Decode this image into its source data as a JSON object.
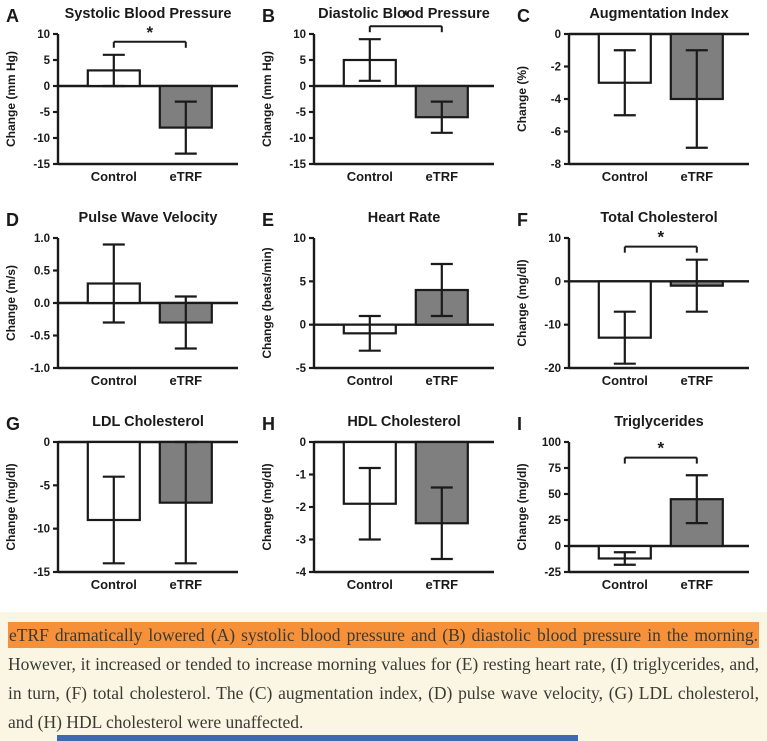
{
  "colors": {
    "control_fill": "#FFFFFF",
    "etrf_fill": "#7F7F7F",
    "axis": "#1A1A1A",
    "caption_bg": "#FBF6E3",
    "highlight": "#F6913A",
    "caption_text": "#3A3A32",
    "bottom_bar": "#3E68B0"
  },
  "caption": {
    "highlight": "eTRF dramatically lowered (A) systolic blood pressure and (B) diastolic blood pressure in the morning.",
    "rest": " However, it increased or tended to increase morning values for (E) resting heart rate, (I) triglycerides, and, in turn, (F) total cholesterol. The (C) augmentation index, (D) pulse wave velocity, (G) LDL cholesterol, and (H) HDL cholesterol were unaffected."
  },
  "chart_data": [
    {
      "type": "bar",
      "letter": "A",
      "title": "Systolic Blood Pressure",
      "ylabel": "Change (mm Hg)",
      "ylim": [
        -15,
        10
      ],
      "yticks": [
        "10",
        "5",
        "0",
        "-5",
        "-10",
        "-15"
      ],
      "categories": [
        "Control",
        "eTRF"
      ],
      "values": [
        3,
        -8
      ],
      "errors_low": [
        0,
        -13
      ],
      "errors_high": [
        6,
        -3
      ],
      "significant": true,
      "sig_y": 8.5,
      "sig_label": "*",
      "grid": false,
      "legend": false
    },
    {
      "type": "bar",
      "letter": "B",
      "title": "Diastolic Blood Pressure",
      "ylabel": "Change (mm Hg)",
      "ylim": [
        -15,
        10
      ],
      "yticks": [
        "10",
        "5",
        "0",
        "-5",
        "-10",
        "-15"
      ],
      "categories": [
        "Control",
        "eTRF"
      ],
      "values": [
        5,
        -6
      ],
      "errors_low": [
        1,
        -9
      ],
      "errors_high": [
        9,
        -3
      ],
      "significant": true,
      "sig_y": 11.5,
      "sig_label": "*",
      "grid": false,
      "legend": false
    },
    {
      "type": "bar",
      "letter": "C",
      "title": "Augmentation Index",
      "ylabel": "Change (%)",
      "ylim": [
        -8,
        0
      ],
      "yticks": [
        "0",
        "-2",
        "-4",
        "-6",
        "-8"
      ],
      "categories": [
        "Control",
        "eTRF"
      ],
      "values": [
        -3,
        -4
      ],
      "errors_low": [
        -5,
        -7
      ],
      "errors_high": [
        -1,
        -1
      ],
      "significant": false,
      "sig_y": null,
      "sig_label": "",
      "grid": false,
      "legend": false
    },
    {
      "type": "bar",
      "letter": "D",
      "title": "Pulse Wave Velocity",
      "ylabel": "Change (m/s)",
      "ylim": [
        -1.0,
        1.0
      ],
      "yticks": [
        "1.0",
        "0.5",
        "0.0",
        "-0.5",
        "-1.0"
      ],
      "categories": [
        "Control",
        "eTRF"
      ],
      "values": [
        0.3,
        -0.3
      ],
      "errors_low": [
        -0.3,
        -0.7
      ],
      "errors_high": [
        0.9,
        0.1
      ],
      "significant": false,
      "sig_y": null,
      "sig_label": "",
      "grid": false,
      "legend": false
    },
    {
      "type": "bar",
      "letter": "E",
      "title": "Heart Rate",
      "ylabel": "Change (beats/min)",
      "ylim": [
        -5,
        10
      ],
      "yticks": [
        "10",
        "5",
        "0",
        "-5"
      ],
      "categories": [
        "Control",
        "eTRF"
      ],
      "values": [
        -1,
        4
      ],
      "errors_low": [
        -3,
        1
      ],
      "errors_high": [
        1,
        7
      ],
      "significant": false,
      "sig_y": null,
      "sig_label": "",
      "grid": false,
      "legend": false
    },
    {
      "type": "bar",
      "letter": "F",
      "title": "Total Cholesterol",
      "ylabel": "Change (mg/dl)",
      "ylim": [
        -20,
        10
      ],
      "yticks": [
        "10",
        "0",
        "-10",
        "-20"
      ],
      "categories": [
        "Control",
        "eTRF"
      ],
      "values": [
        -13,
        -1
      ],
      "errors_low": [
        -19,
        -7
      ],
      "errors_high": [
        -7,
        5
      ],
      "significant": true,
      "sig_y": 8,
      "sig_label": "*",
      "grid": false,
      "legend": false
    },
    {
      "type": "bar",
      "letter": "G",
      "title": "LDL Cholesterol",
      "ylabel": "Change (mg/dl)",
      "ylim": [
        -15,
        0
      ],
      "yticks": [
        "0",
        "-5",
        "-10",
        "-15"
      ],
      "categories": [
        "Control",
        "eTRF"
      ],
      "values": [
        -9,
        -7
      ],
      "errors_low": [
        -14,
        -14
      ],
      "errors_high": [
        -4,
        0
      ],
      "significant": false,
      "sig_y": null,
      "sig_label": "",
      "grid": false,
      "legend": false
    },
    {
      "type": "bar",
      "letter": "H",
      "title": "HDL Cholesterol",
      "ylabel": "Change (mg/dl)",
      "ylim": [
        -4,
        0
      ],
      "yticks": [
        "0",
        "-1",
        "-2",
        "-3",
        "-4"
      ],
      "categories": [
        "Control",
        "eTRF"
      ],
      "values": [
        -1.9,
        -2.5
      ],
      "errors_low": [
        -3.0,
        -3.6
      ],
      "errors_high": [
        -0.8,
        -1.4
      ],
      "significant": false,
      "sig_y": null,
      "sig_label": "",
      "grid": false,
      "legend": false
    },
    {
      "type": "bar",
      "letter": "I",
      "title": "Triglycerides",
      "ylabel": "Change (mg/dl)",
      "ylim": [
        -25,
        100
      ],
      "yticks": [
        "100",
        "75",
        "50",
        "25",
        "0",
        "-25"
      ],
      "categories": [
        "Control",
        "eTRF"
      ],
      "values": [
        -12,
        45
      ],
      "errors_low": [
        -18,
        22
      ],
      "errors_high": [
        -6,
        68
      ],
      "significant": true,
      "sig_y": 85,
      "sig_label": "*",
      "grid": false,
      "legend": false
    }
  ]
}
